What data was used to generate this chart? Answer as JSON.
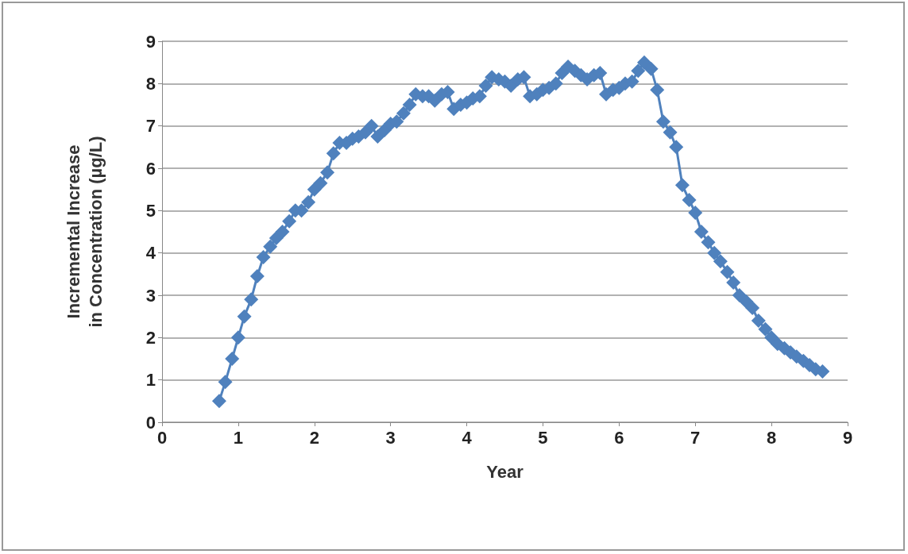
{
  "chart_data": {
    "type": "line",
    "xlabel": "Year",
    "ylabel": "Incremental Increase in Concentration (µg/L)",
    "x": [
      0.75,
      0.83,
      0.92,
      1.0,
      1.08,
      1.17,
      1.25,
      1.33,
      1.42,
      1.5,
      1.58,
      1.67,
      1.75,
      1.83,
      1.92,
      2.0,
      2.08,
      2.17,
      2.25,
      2.33,
      2.42,
      2.5,
      2.58,
      2.67,
      2.75,
      2.83,
      2.92,
      3.0,
      3.08,
      3.17,
      3.25,
      3.33,
      3.42,
      3.5,
      3.58,
      3.67,
      3.75,
      3.83,
      3.92,
      4.0,
      4.08,
      4.17,
      4.25,
      4.33,
      4.42,
      4.5,
      4.58,
      4.67,
      4.75,
      4.83,
      4.92,
      5.0,
      5.08,
      5.17,
      5.25,
      5.33,
      5.42,
      5.5,
      5.58,
      5.67,
      5.75,
      5.83,
      5.92,
      6.0,
      6.08,
      6.17,
      6.25,
      6.33,
      6.42,
      6.5,
      6.58,
      6.67,
      6.75,
      6.83,
      6.92,
      7.0,
      7.08,
      7.17,
      7.25,
      7.33,
      7.42,
      7.5,
      7.58,
      7.67,
      7.75,
      7.83,
      7.92,
      8.0,
      8.08,
      8.17,
      8.25,
      8.33,
      8.42,
      8.5,
      8.58,
      8.67
    ],
    "series": [
      {
        "color": "#4f81bd",
        "values": [
          0.5,
          0.95,
          1.5,
          2.0,
          2.5,
          2.9,
          3.45,
          3.9,
          4.15,
          4.35,
          4.5,
          4.75,
          5.0,
          5.0,
          5.2,
          5.5,
          5.65,
          5.9,
          6.35,
          6.6,
          6.6,
          6.7,
          6.75,
          6.85,
          7.0,
          6.75,
          6.9,
          7.05,
          7.1,
          7.3,
          7.5,
          7.75,
          7.7,
          7.7,
          7.6,
          7.75,
          7.8,
          7.4,
          7.5,
          7.55,
          7.65,
          7.7,
          7.95,
          8.15,
          8.1,
          8.05,
          7.95,
          8.1,
          8.15,
          7.7,
          7.75,
          7.85,
          7.9,
          8.0,
          8.25,
          8.4,
          8.3,
          8.2,
          8.1,
          8.2,
          8.25,
          7.75,
          7.85,
          7.9,
          8.0,
          8.05,
          8.3,
          8.5,
          8.35,
          7.85,
          7.1,
          6.85,
          6.5,
          5.6,
          5.25,
          4.95,
          4.5,
          4.25,
          4.0,
          3.8,
          3.55,
          3.3,
          3.0,
          2.85,
          2.7,
          2.4,
          2.2,
          2.0,
          1.85,
          1.75,
          1.65,
          1.55,
          1.45,
          1.35,
          1.25,
          1.2
        ]
      }
    ],
    "xlim": [
      0,
      9
    ],
    "xticks": [
      0,
      1,
      2,
      3,
      4,
      5,
      6,
      7,
      8,
      9
    ],
    "ylim": [
      0,
      9
    ],
    "yticks": [
      0,
      1,
      2,
      3,
      4,
      5,
      6,
      7,
      8,
      9
    ],
    "grid": "y",
    "marker": "diamond",
    "line_style": "solid"
  }
}
